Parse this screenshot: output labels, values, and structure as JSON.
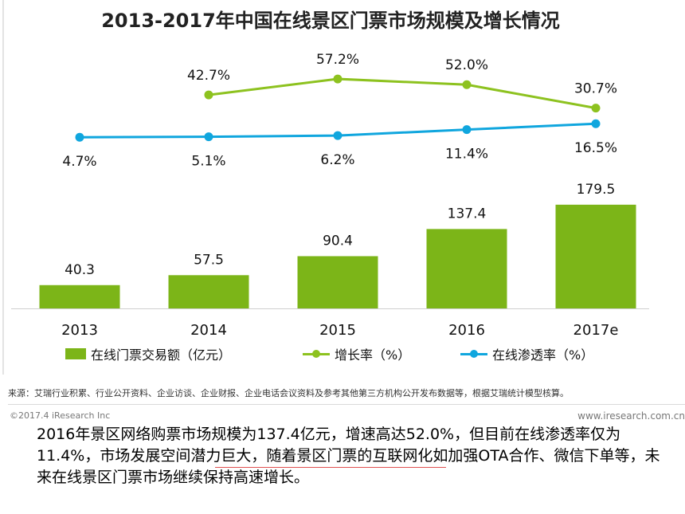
{
  "chart_data": {
    "type": "bar",
    "title": "2013-2017年中国在线景区门票市场规模及增长情况",
    "categories": [
      "2013",
      "2014",
      "2015",
      "2016",
      "2017e"
    ],
    "series": [
      {
        "name": "在线门票交易额（亿元）",
        "type": "bar",
        "values": [
          40.3,
          57.5,
          90.4,
          137.4,
          179.5
        ],
        "labels": [
          "40.3",
          "57.5",
          "90.4",
          "137.4",
          "179.5"
        ],
        "color": "#7cb518"
      },
      {
        "name": "增长率（%）",
        "type": "line",
        "values": [
          null,
          42.7,
          57.2,
          52.0,
          30.7
        ],
        "labels": [
          "",
          "42.7%",
          "57.2%",
          "52.0%",
          "30.7%"
        ],
        "color": "#8dc21f"
      },
      {
        "name": "在线渗透率（%）",
        "type": "line",
        "values": [
          4.7,
          5.1,
          6.2,
          11.4,
          16.5
        ],
        "labels": [
          "4.7%",
          "5.1%",
          "6.2%",
          "11.4%",
          "16.5%"
        ],
        "color": "#10a6de"
      }
    ],
    "legend": "bottom",
    "grid": false
  },
  "source_note": "来源：艾瑞行业积累、行业公开资料、企业访谈、企业财报、企业电话会议资料及参考其他第三方机构公开发布数据等，根据艾瑞统计模型核算。",
  "copyright": "©2017.4 iResearch Inc",
  "website": "www.iresearch.com.cn",
  "summary": "2016年景区网络购票市场规模为137.4亿元，增速高达52.0%，但目前在线渗透率仅为11.4%，市场发展空间潜力巨大，随着景区门票的互联网化如加强OTA合作、微信下单等，未来在线景区门票市场继续保持高速增长。"
}
